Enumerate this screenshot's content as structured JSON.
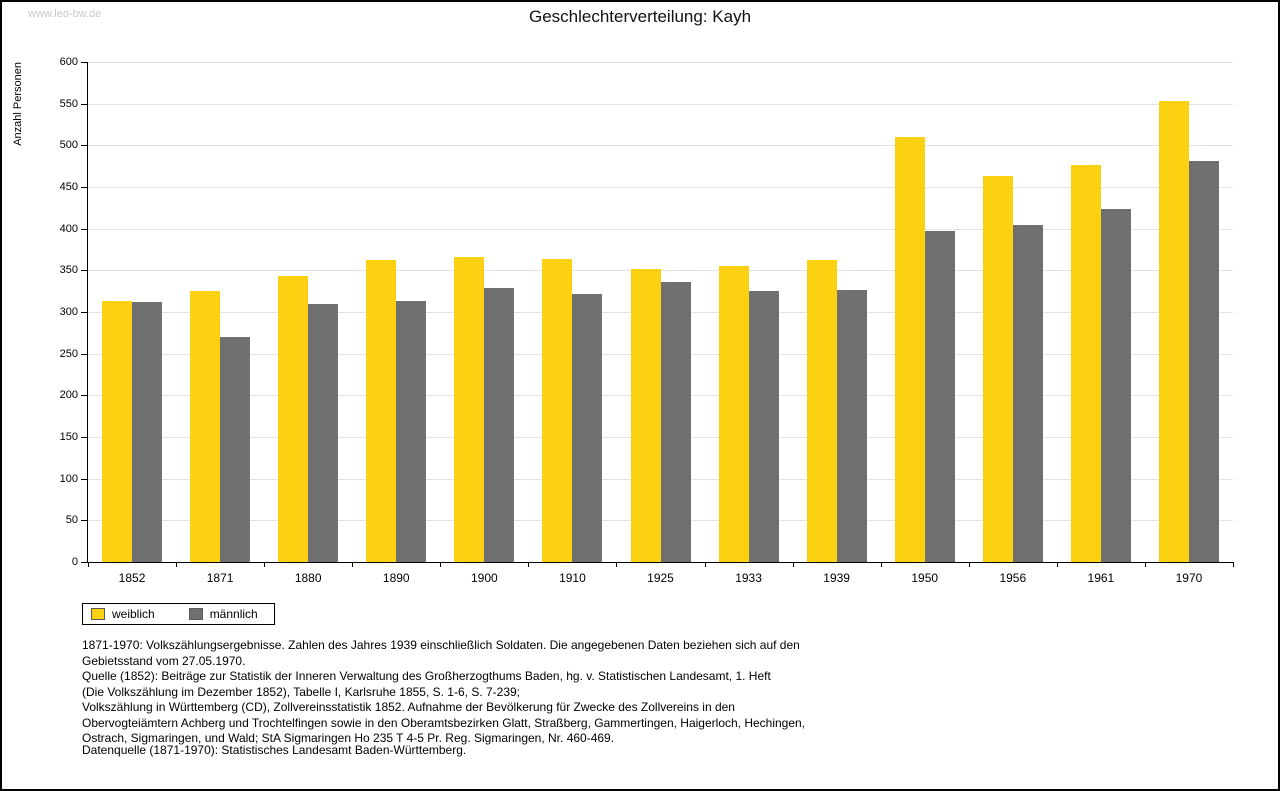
{
  "watermark": "www.leo-bw.de",
  "title": "Geschlechterverteilung: Kayh",
  "chart_data": {
    "type": "bar",
    "title": "Geschlechterverteilung: Kayh",
    "xlabel": "",
    "ylabel": "Anzahl Personen",
    "ylim": [
      0,
      600
    ],
    "ytick_step": 50,
    "grid": true,
    "legend_position": "bottom-left",
    "categories": [
      "1852",
      "1871",
      "1880",
      "1890",
      "1900",
      "1910",
      "1925",
      "1933",
      "1939",
      "1950",
      "1956",
      "1961",
      "1970"
    ],
    "series": [
      {
        "name": "weiblich",
        "color": "#fbd112",
        "values": [
          313,
          325,
          343,
          362,
          366,
          364,
          352,
          355,
          363,
          510,
          463,
          477,
          553
        ]
      },
      {
        "name": "männlich",
        "color": "#707070",
        "values": [
          312,
          270,
          310,
          313,
          329,
          322,
          336,
          325,
          327,
          397,
          404,
          424,
          481
        ]
      }
    ]
  },
  "footnotes": [
    "1871-1970: Volkszählungsergebnisse. Zahlen des Jahres 1939 einschließlich Soldaten. Die angegebenen Daten beziehen sich auf den",
    "Gebietsstand vom 27.05.1970.",
    "Quelle (1852): Beiträge zur Statistik der Inneren Verwaltung des Großherzogthums Baden, hg. v. Statistischen Landesamt, 1. Heft",
    "(Die Volkszählung im Dezember 1852), Tabelle I, Karlsruhe 1855, S. 1-6, S. 7-239;",
    "Volkszählung in Württemberg (CD), Zollvereinsstatistik 1852. Aufnahme der Bevölkerung für Zwecke des Zollvereins in den",
    "Obervogteiämtern Achberg und Trochtelfingen sowie in den Oberamtsbezirken Glatt, Straßberg, Gammertingen, Haigerloch, Hechingen,",
    "Ostrach, Sigmaringen, und Wald; StA Sigmaringen Ho 235 T 4-5 Pr. Reg. Sigmaringen, Nr. 460-469."
  ],
  "datasource": "Datenquelle (1871-1970): Statistisches Landesamt Baden-Württemberg."
}
